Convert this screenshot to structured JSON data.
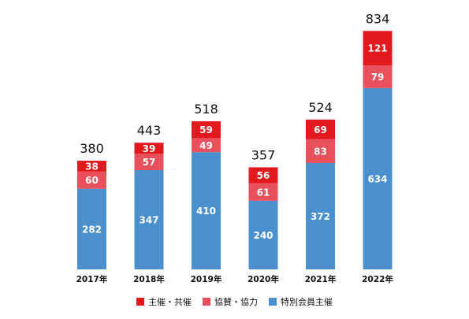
{
  "chart_data": {
    "type": "bar",
    "stacked": true,
    "categories": [
      "2017年",
      "2018年",
      "2019年",
      "2020年",
      "2021年",
      "2022年"
    ],
    "series": [
      {
        "name": "特別会員主催",
        "color": "#4a90cf",
        "values": [
          282,
          347,
          410,
          240,
          372,
          634
        ]
      },
      {
        "name": "協賛・協力",
        "color": "#e8505b",
        "values": [
          60,
          57,
          49,
          61,
          83,
          79
        ]
      },
      {
        "name": "主催・共催",
        "color": "#e4191e",
        "values": [
          38,
          39,
          59,
          56,
          69,
          121
        ]
      }
    ],
    "totals": [
      380,
      443,
      518,
      357,
      524,
      834
    ],
    "legend_order": [
      "主催・共催",
      "協賛・協力",
      "特別会員主催"
    ],
    "legend_position": "bottom",
    "grid": false
  }
}
